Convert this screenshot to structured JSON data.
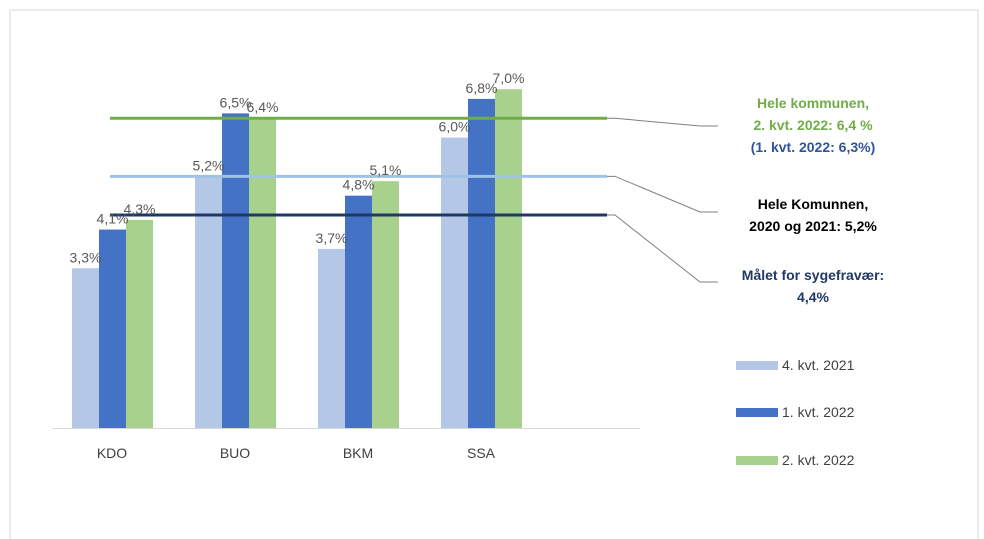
{
  "chart_data": {
    "type": "bar",
    "categories": [
      "KDO",
      "BUO",
      "BKM",
      "SSA"
    ],
    "ylim": [
      0,
      7.5
    ],
    "series": [
      {
        "name": "4. kvt. 2021",
        "values": [
          3.3,
          5.2,
          3.7,
          6.0
        ],
        "labels": [
          "3,3%",
          "5,2%",
          "3,7%",
          "6,0%"
        ],
        "color": "#b4c7e7"
      },
      {
        "name": "1. kvt. 2022",
        "values": [
          4.1,
          6.5,
          4.8,
          6.8
        ],
        "labels": [
          "4,1%",
          "6,5%",
          "4,8%",
          "6,8%"
        ],
        "color": "#4472c4"
      },
      {
        "name": "2. kvt. 2022",
        "values": [
          4.3,
          6.4,
          5.1,
          7.0
        ],
        "labels": [
          "4,3%",
          "6,4%",
          "5,1%",
          "7,0%"
        ],
        "color": "#a9d18e"
      }
    ],
    "reference_lines": [
      {
        "value": 6.4,
        "color": "#70ad47"
      },
      {
        "value": 5.2,
        "color": "#9dc3e6"
      },
      {
        "value": 4.4,
        "color": "#1f3864"
      }
    ],
    "legend_position": "right",
    "grid": false
  },
  "annotations": {
    "municipality_2022": {
      "line1": "Hele kommunen,",
      "line2": "2. kvt. 2022: 6,4 %",
      "line3": "(1. kvt. 2022: 6,3%)",
      "color_main": "#70ad47",
      "color_sub": "#2f5597"
    },
    "municipality_2020_2021": {
      "line1": "Hele Komunnen,",
      "line2": "2020 og 2021: 5,2%",
      "color": "#000000"
    },
    "target": {
      "line1": "Målet for sygefravær:",
      "line2": "4,4%",
      "color": "#1f3864"
    }
  }
}
